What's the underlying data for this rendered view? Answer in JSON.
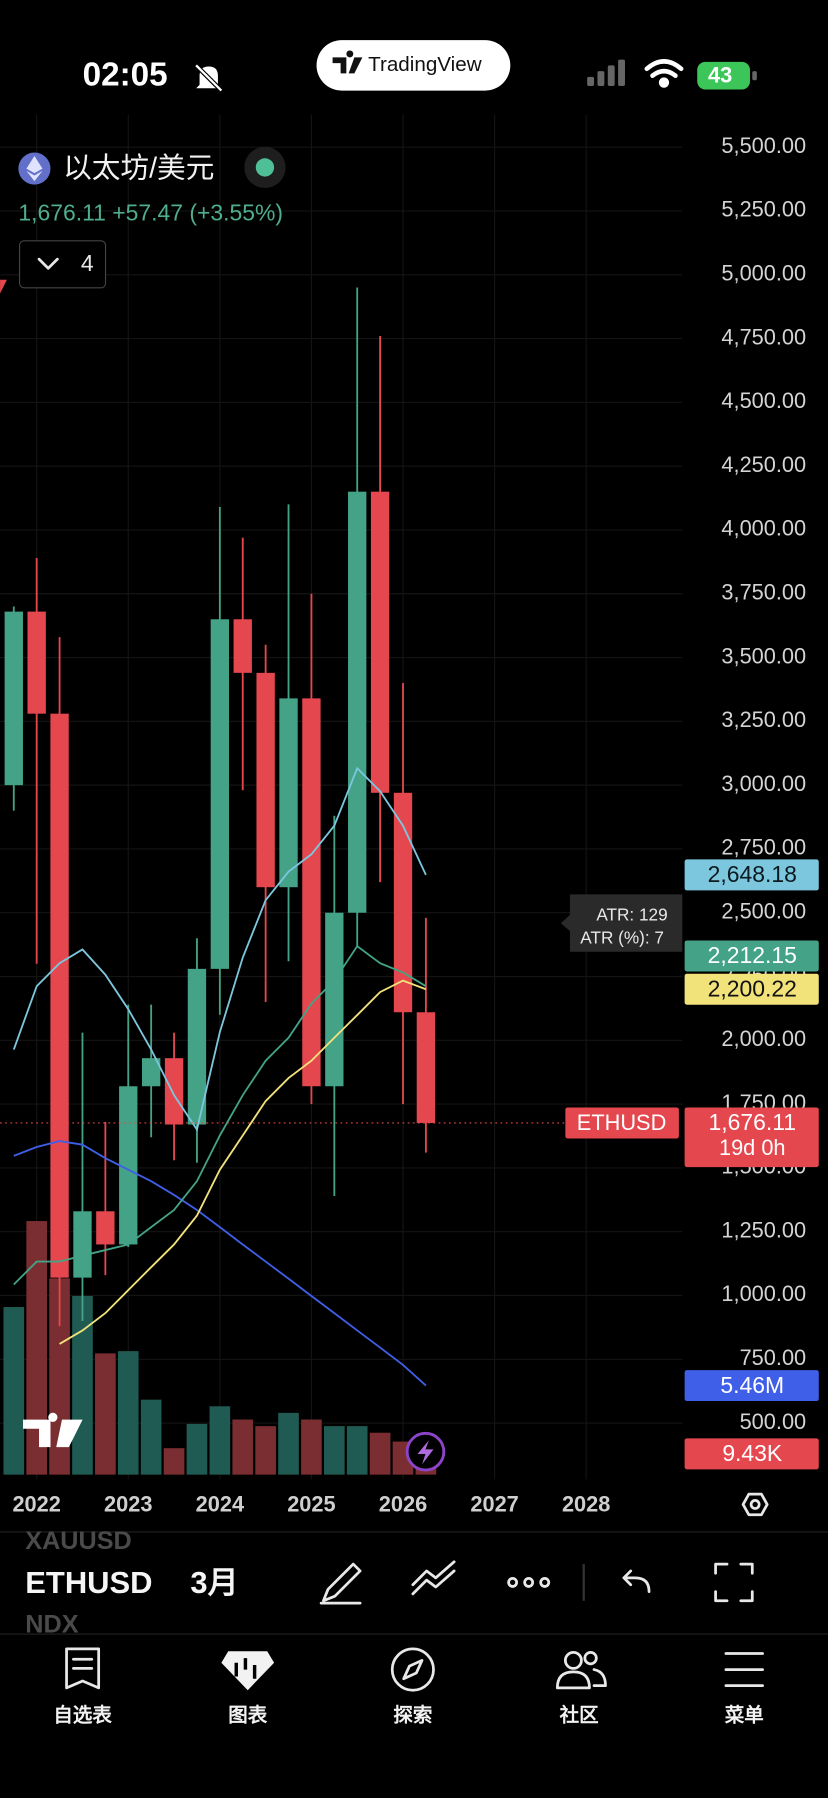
{
  "status_bar": {
    "time": "02:05",
    "battery": 43
  },
  "header": {
    "brand": "TradingView",
    "symbol_name": "以太坊/美元",
    "quote": "1,676.11 +57.47 (+3.55%)",
    "indicator_count": 4
  },
  "chart_data": {
    "type": "candlestick",
    "x": [
      2021.75,
      2022,
      2022.25,
      2022.5,
      2022.75,
      2023,
      2023.25,
      2023.5,
      2023.75,
      2024,
      2024.25,
      2024.5,
      2024.75,
      2025,
      2025.25,
      2025.5,
      2025.75,
      2026,
      2026.25
    ],
    "open": [
      3000,
      3680,
      3280,
      1070,
      1330,
      1200,
      1820,
      1930,
      1670,
      2280,
      3650,
      3440,
      2600,
      3340,
      1820,
      2500,
      4150,
      2970,
      2110
    ],
    "high": [
      3700,
      3890,
      3580,
      2030,
      1680,
      2140,
      2140,
      2030,
      2400,
      4090,
      3970,
      3550,
      4100,
      3750,
      2880,
      4950,
      4760,
      3400,
      2480
    ],
    "low": [
      2900,
      2300,
      880,
      900,
      1080,
      1190,
      1620,
      1530,
      1520,
      2100,
      2980,
      2150,
      2310,
      1750,
      1390,
      2370,
      2620,
      1750,
      1560
    ],
    "close": [
      3680,
      3280,
      1070,
      1330,
      1200,
      1820,
      1930,
      1670,
      2280,
      3650,
      3440,
      2600,
      3340,
      1820,
      2500,
      4150,
      2970,
      2110,
      1676.11
    ],
    "volume": [
      76,
      115,
      89,
      81,
      55,
      56,
      34,
      12,
      23,
      31,
      25,
      22,
      28,
      25,
      22,
      22,
      19,
      15,
      9.43
    ],
    "up_color": "#44a287",
    "down_color": "#e5474e",
    "vol_up_color": "#1f5b52",
    "vol_down_color": "#7a2e31",
    "series": [
      {
        "color": "#7cc6de",
        "label_text_color": "#0b1a20",
        "last_label": "2,648.18",
        "values": [
          1964,
          2212,
          2302,
          2356,
          2257,
          2122,
          1964,
          1785,
          1650,
          2032,
          2324,
          2549,
          2661,
          2729,
          2841,
          3066,
          2976,
          2841,
          2648.18
        ]
      },
      {
        "color": "#3f5fe8",
        "label_text_color": "#ffffff",
        "last_label": "5.46M",
        "values": [
          1547,
          1582,
          1605,
          1591,
          1538,
          1493,
          1448,
          1394,
          1335,
          1268,
          1200,
          1133,
          1066,
          998,
          931,
          863,
          796,
          728,
          647
        ]
      },
      {
        "color": "#44a287",
        "label_text_color": "#ffffff",
        "last_label": "2,212.15",
        "values": [
          1043,
          1133,
          1133,
          1156,
          1178,
          1200,
          1268,
          1335,
          1448,
          1627,
          1785,
          1920,
          2010,
          2144,
          2234,
          2369,
          2302,
          2266,
          2212.15
        ]
      },
      {
        "color": "#f2e27a",
        "label_text_color": "#111111",
        "last_label": "2,200.22",
        "values": [
          null,
          null,
          810,
          863,
          931,
          1021,
          1111,
          1200,
          1313,
          1493,
          1627,
          1762,
          1852,
          1920,
          2010,
          2099,
          2189,
          2234,
          2200.22
        ]
      }
    ],
    "last_label": "1,676.11",
    "symbol_tag": "ETHUSD",
    "countdown": "19d 0h",
    "volume_label": {
      "value": 9.43,
      "label": "9.43K"
    },
    "atr": [
      "ATR: 129",
      "ATR (%): 7"
    ],
    "xlim": [
      2021.6,
      2029.05
    ],
    "xticks": [
      2022,
      2023,
      2024,
      2025,
      2026,
      2027,
      2028
    ],
    "ylim": [
      280,
      5560
    ],
    "yticks": [
      {
        "value": 5500,
        "label": "5,500.00"
      },
      {
        "value": 5250,
        "label": "5,250.00"
      },
      {
        "value": 5000,
        "label": "5,000.00"
      },
      {
        "value": 4750,
        "label": "4,750.00"
      },
      {
        "value": 4500,
        "label": "4,500.00"
      },
      {
        "value": 4250,
        "label": "4,250.00"
      },
      {
        "value": 4000,
        "label": "4,000.00"
      },
      {
        "value": 3750,
        "label": "3,750.00"
      },
      {
        "value": 3500,
        "label": "3,500.00"
      },
      {
        "value": 3250,
        "label": "3,250.00"
      },
      {
        "value": 3000,
        "label": "3,000.00"
      },
      {
        "value": 2750,
        "label": "2,750.00"
      },
      {
        "value": 2500,
        "label": "2,500.00"
      },
      {
        "value": 2250,
        "label": "2,250.00"
      },
      {
        "value": 2000,
        "label": "2,000.00"
      },
      {
        "value": 1750,
        "label": "1,750.00"
      },
      {
        "value": 1500,
        "label": "1,500.00"
      },
      {
        "value": 1250,
        "label": "1,250.00"
      },
      {
        "value": 1000,
        "label": "1,000.00"
      },
      {
        "value": 750,
        "label": "750.00"
      },
      {
        "value": 500,
        "label": "500.00"
      }
    ],
    "vlim": [
      0,
      130
    ],
    "grid": true
  },
  "toolbar": {
    "watch_above": "XAUUSD",
    "symbol": "ETHUSD",
    "interval": "3月",
    "watch_below": "NDX"
  },
  "nav": [
    {
      "label": "自选表"
    },
    {
      "label": "图表"
    },
    {
      "label": "探索"
    },
    {
      "label": "社区"
    },
    {
      "label": "菜单"
    }
  ]
}
